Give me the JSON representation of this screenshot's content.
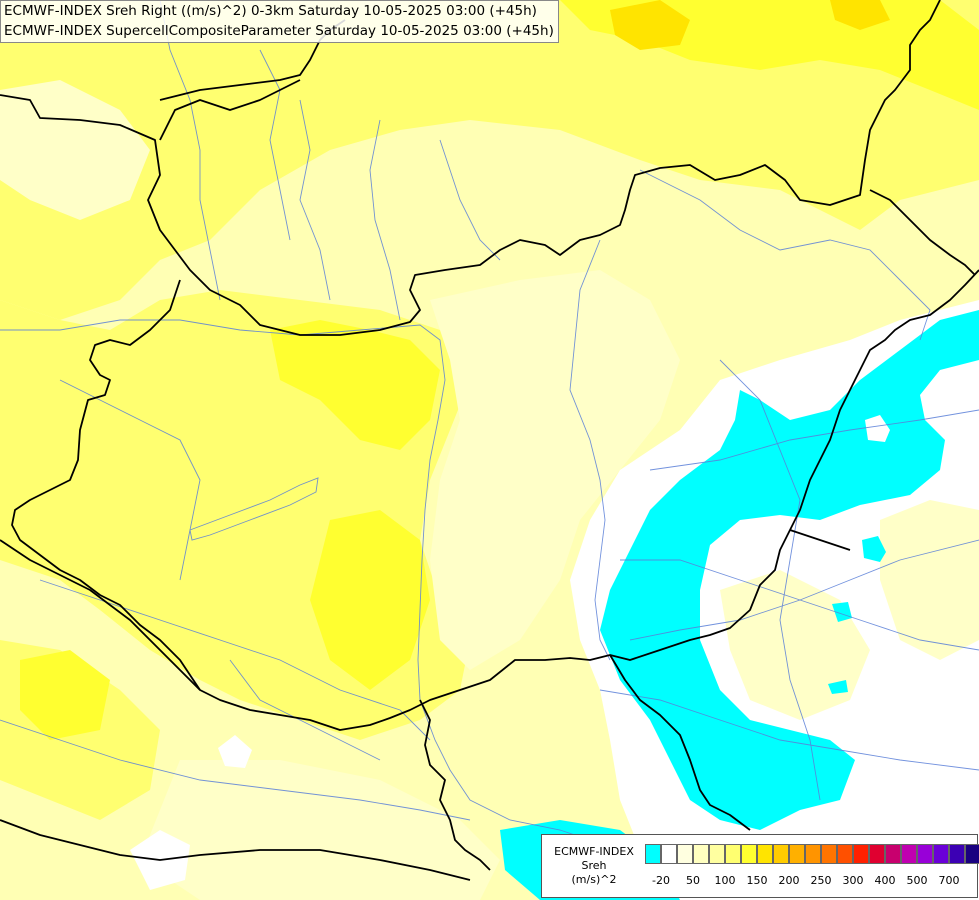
{
  "titles": {
    "line1": "ECMWF-INDEX Sreh Right ((m/s)^2) 0-3km Saturday 10-05-2025 03:00 (+45h)",
    "line2": "ECMWF-INDEX SupercellCompositeParameter Saturday 10-05-2025 03:00 (+45h)"
  },
  "legend": {
    "source": "ECMWF-INDEX",
    "variable": "Sreh",
    "unit": "(m/s)^2",
    "colors": [
      "#00ffff",
      "#ffffff",
      "#ffffe0",
      "#ffffc0",
      "#ffffa0",
      "#ffff70",
      "#ffff30",
      "#ffe400",
      "#ffcc00",
      "#ffb000",
      "#ff9400",
      "#ff7400",
      "#ff5000",
      "#ff2000",
      "#e00030",
      "#c8006e",
      "#c000b0",
      "#9800d8",
      "#6a00d8",
      "#3c00b4",
      "#1a0080"
    ],
    "ticks": [
      {
        "label": "-20",
        "index": 1
      },
      {
        "label": "50",
        "index": 3
      },
      {
        "label": "100",
        "index": 5
      },
      {
        "label": "150",
        "index": 7
      },
      {
        "label": "200",
        "index": 9
      },
      {
        "label": "250",
        "index": 11
      },
      {
        "label": "300",
        "index": 13
      },
      {
        "label": "400",
        "index": 15
      },
      {
        "label": "500",
        "index": 17
      },
      {
        "label": "700",
        "index": 19
      }
    ]
  }
}
